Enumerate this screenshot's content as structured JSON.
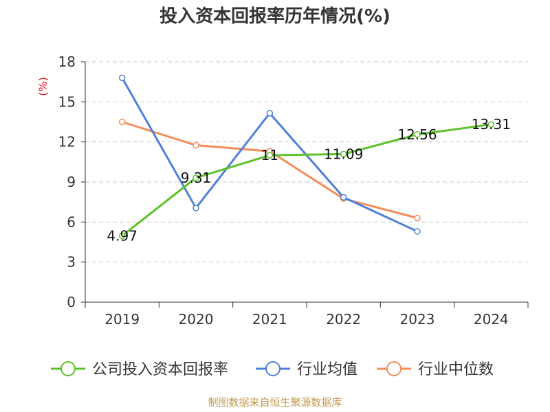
{
  "chart_data": {
    "type": "line",
    "title": "投入资本回报率历年情况(%)",
    "ylabel": "(%)",
    "ylim": [
      0,
      18
    ],
    "yticks": [
      0,
      3,
      6,
      9,
      12,
      15,
      18
    ],
    "grid": true,
    "legend_position": "bottom",
    "categories": [
      "2019",
      "2020",
      "2021",
      "2022",
      "2023",
      "2024"
    ],
    "series": [
      {
        "name": "公司投入资本回报率",
        "color": "#5cc228",
        "values": [
          4.97,
          9.31,
          11,
          11.09,
          12.56,
          13.31
        ],
        "labels": [
          "4.97",
          "9.31",
          "11",
          "11.09",
          "12.56",
          "13.31"
        ]
      },
      {
        "name": "行业均值",
        "color": "#4f80d9",
        "values": [
          16.8,
          7.05,
          14.15,
          7.85,
          5.3,
          null
        ]
      },
      {
        "name": "行业中位数",
        "color": "#f48d5a",
        "values": [
          13.5,
          11.75,
          11.3,
          7.75,
          6.3,
          null
        ]
      }
    ],
    "source": "制图数据来自恒生聚源数据库"
  }
}
